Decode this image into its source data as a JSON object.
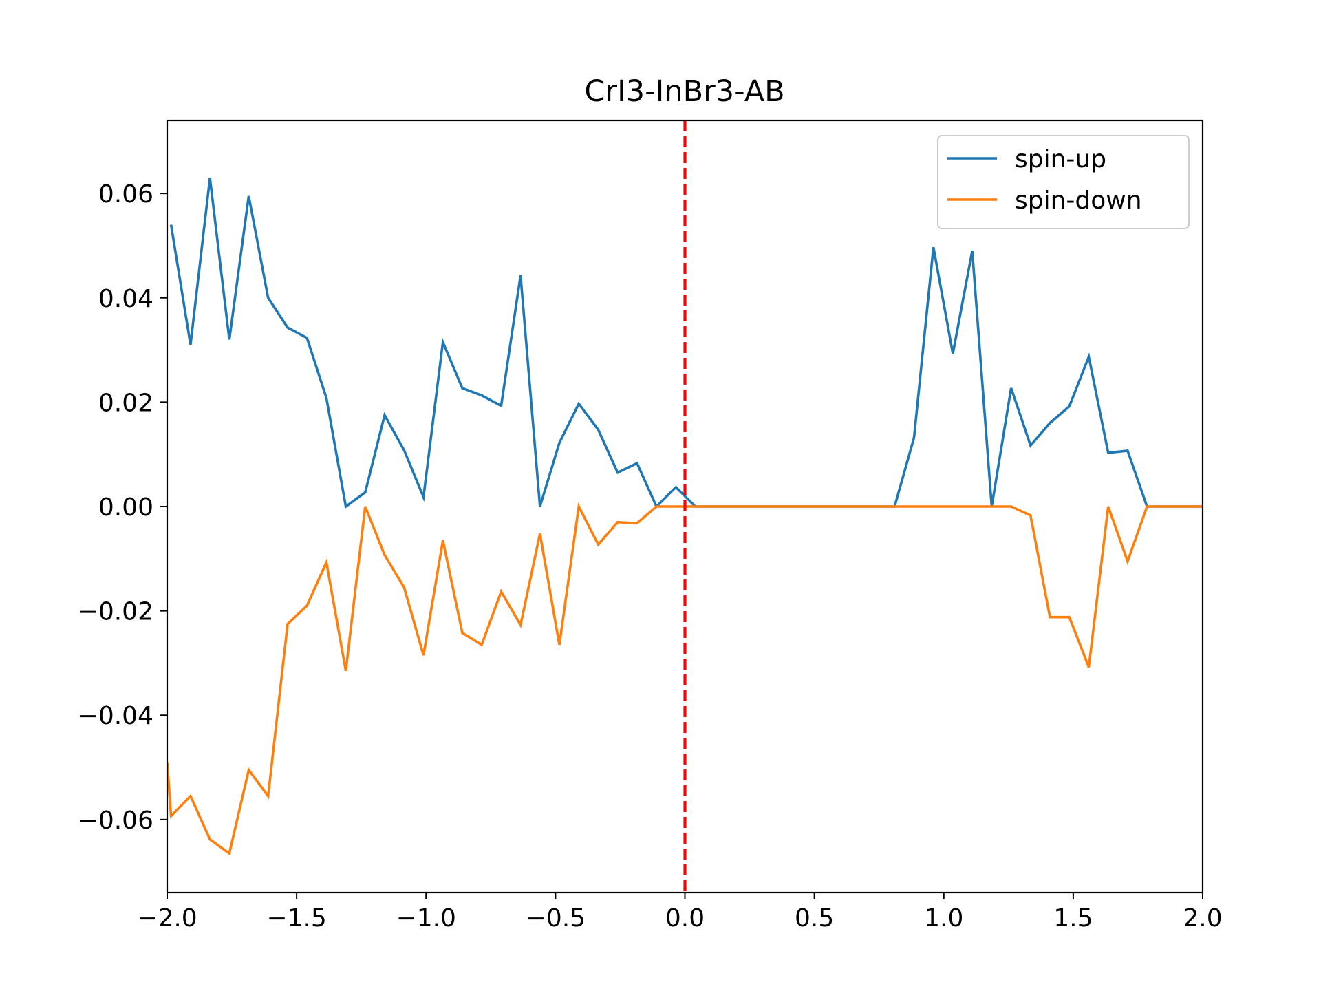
{
  "chart_data": {
    "type": "line",
    "title": "CrI3-InBr3-AB",
    "xlabel": "",
    "ylabel": "",
    "xlim": [
      -2.0,
      2.0
    ],
    "ylim": [
      -0.074,
      0.074
    ],
    "xticks": [
      -2.0,
      -1.5,
      -1.0,
      -0.5,
      0.0,
      0.5,
      1.0,
      1.5,
      2.0
    ],
    "xtick_labels": [
      "−2.0",
      "−1.5",
      "−1.0",
      "−0.5",
      "0.0",
      "0.5",
      "1.0",
      "1.5",
      "2.0"
    ],
    "yticks": [
      0.06,
      0.04,
      0.02,
      0.0,
      -0.02,
      -0.04,
      -0.06
    ],
    "ytick_labels": [
      "0.06",
      "0.04",
      "0.02",
      "0.00",
      "−0.02",
      "−0.04",
      "−0.06"
    ],
    "grid": false,
    "legend_position": "upper-right",
    "fermi_line": {
      "x": 0.0,
      "color": "#ff0000",
      "style": "dashed"
    },
    "series": [
      {
        "name": "spin-up",
        "color": "#1f77b4",
        "x": [
          -1.985,
          -1.91,
          -1.835,
          -1.76,
          -1.685,
          -1.61,
          -1.535,
          -1.46,
          -1.385,
          -1.31,
          -1.235,
          -1.16,
          -1.085,
          -1.01,
          -0.935,
          -0.86,
          -0.785,
          -0.71,
          -0.635,
          -0.56,
          -0.485,
          -0.41,
          -0.335,
          -0.26,
          -0.185,
          -0.11,
          -0.035,
          0.04,
          0.81,
          0.885,
          0.96,
          1.035,
          1.11,
          1.185,
          1.26,
          1.335,
          1.41,
          1.485,
          1.56,
          1.635,
          1.71,
          1.785,
          2.0
        ],
        "y": [
          0.054,
          0.031,
          0.063,
          0.032,
          0.0595,
          0.04,
          0.0343,
          0.0323,
          0.0208,
          0.0,
          0.0027,
          0.0175,
          0.0108,
          0.0018,
          0.0315,
          0.0227,
          0.0213,
          0.0193,
          0.0443,
          0.0,
          0.0122,
          0.0197,
          0.0147,
          0.0065,
          0.0083,
          0.0,
          0.0037,
          0.0,
          0.0,
          0.0132,
          0.0497,
          0.0293,
          0.049,
          0.0,
          0.0227,
          0.0117,
          0.016,
          0.0192,
          0.0287,
          0.0103,
          0.0107,
          0.0,
          0.0
        ]
      },
      {
        "name": "spin-down",
        "color": "#ff7f0e",
        "x": [
          -2.0,
          -1.985,
          -1.91,
          -1.835,
          -1.76,
          -1.685,
          -1.61,
          -1.535,
          -1.46,
          -1.385,
          -1.31,
          -1.235,
          -1.16,
          -1.085,
          -1.01,
          -0.935,
          -0.86,
          -0.785,
          -0.71,
          -0.635,
          -0.56,
          -0.485,
          -0.41,
          -0.335,
          -0.26,
          -0.185,
          -0.11,
          1.26,
          1.335,
          1.41,
          1.485,
          1.56,
          1.635,
          1.71,
          1.785,
          2.0
        ],
        "y": [
          -0.049,
          -0.0593,
          -0.0555,
          -0.0638,
          -0.0665,
          -0.0505,
          -0.0555,
          -0.0225,
          -0.019,
          -0.0107,
          -0.0315,
          0.0,
          -0.0093,
          -0.0155,
          -0.0285,
          -0.0065,
          -0.0242,
          -0.0265,
          -0.0163,
          -0.0227,
          -0.0052,
          -0.0265,
          0.0,
          -0.0073,
          -0.003,
          -0.0032,
          0.0,
          0.0,
          -0.0017,
          -0.0212,
          -0.0212,
          -0.0308,
          0.0,
          -0.0105,
          0.0,
          0.0
        ]
      }
    ]
  }
}
